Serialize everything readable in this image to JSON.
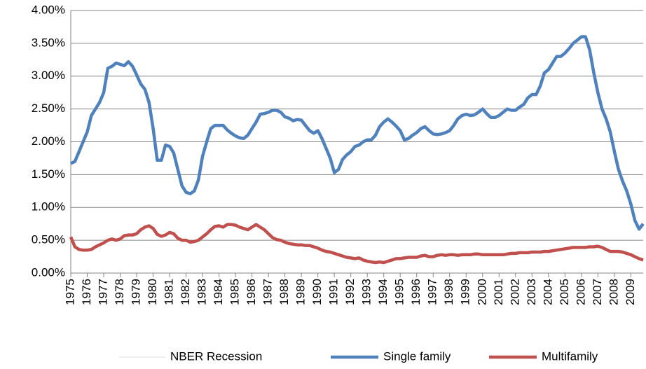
{
  "chart_data": {
    "type": "line",
    "categories": [
      "1975",
      null,
      null,
      null,
      "1976",
      null,
      null,
      null,
      "1977",
      null,
      null,
      null,
      "1978",
      null,
      null,
      null,
      "1979",
      null,
      null,
      null,
      "1980",
      null,
      null,
      null,
      "1981",
      null,
      null,
      null,
      "1982",
      null,
      null,
      null,
      "1983",
      null,
      null,
      null,
      "1984",
      null,
      null,
      null,
      "1985",
      null,
      null,
      null,
      "1986",
      null,
      null,
      null,
      "1987",
      null,
      null,
      null,
      "1988",
      null,
      null,
      null,
      "1989",
      null,
      null,
      null,
      "1990",
      null,
      null,
      null,
      "1991",
      null,
      null,
      null,
      "1992",
      null,
      null,
      null,
      "1993",
      null,
      null,
      null,
      "1994",
      null,
      null,
      null,
      "1995",
      null,
      null,
      null,
      "1996",
      null,
      null,
      null,
      "1997",
      null,
      null,
      null,
      "1998",
      null,
      null,
      null,
      "1999",
      null,
      null,
      null,
      "2000",
      null,
      null,
      null,
      "2001",
      null,
      null,
      null,
      "2002",
      null,
      null,
      null,
      "2003",
      null,
      null,
      null,
      "2004",
      null,
      null,
      null,
      "2005",
      null,
      null,
      null,
      "2006",
      null,
      null,
      null,
      "2007",
      null,
      null,
      null,
      "2008",
      null,
      null,
      null,
      "2009",
      null,
      null,
      null
    ],
    "recession": {
      "name": "NBER Recession",
      "color": "#eeeeee"
    },
    "series": [
      {
        "name": "Single family",
        "color": "#4f81bd",
        "values": [
          1.67,
          1.7,
          1.85,
          2.0,
          2.15,
          2.4,
          2.5,
          2.6,
          2.75,
          3.12,
          3.15,
          3.2,
          3.18,
          3.16,
          3.22,
          3.15,
          3.02,
          2.88,
          2.8,
          2.6,
          2.2,
          1.72,
          1.72,
          1.95,
          1.93,
          1.83,
          1.58,
          1.33,
          1.23,
          1.21,
          1.25,
          1.42,
          1.78,
          2.0,
          2.2,
          2.25,
          2.25,
          2.25,
          2.18,
          2.13,
          2.09,
          2.06,
          2.05,
          2.1,
          2.2,
          2.3,
          2.42,
          2.43,
          2.45,
          2.48,
          2.48,
          2.45,
          2.38,
          2.36,
          2.32,
          2.34,
          2.33,
          2.25,
          2.17,
          2.13,
          2.17,
          2.05,
          1.9,
          1.75,
          1.53,
          1.58,
          1.73,
          1.8,
          1.85,
          1.93,
          1.95,
          2.0,
          2.03,
          2.03,
          2.1,
          2.23,
          2.3,
          2.35,
          2.3,
          2.24,
          2.17,
          2.03,
          2.05,
          2.1,
          2.14,
          2.2,
          2.23,
          2.17,
          2.12,
          2.11,
          2.12,
          2.14,
          2.17,
          2.25,
          2.35,
          2.4,
          2.42,
          2.4,
          2.41,
          2.45,
          2.5,
          2.43,
          2.37,
          2.37,
          2.4,
          2.45,
          2.5,
          2.48,
          2.48,
          2.53,
          2.57,
          2.67,
          2.72,
          2.72,
          2.85,
          3.05,
          3.1,
          3.2,
          3.3,
          3.3,
          3.35,
          3.42,
          3.5,
          3.55,
          3.6,
          3.6,
          3.4,
          3.05,
          2.75,
          2.5,
          2.35,
          2.15,
          1.85,
          1.58,
          1.4,
          1.25,
          1.05,
          0.8,
          0.67,
          0.75
        ]
      },
      {
        "name": "Multifamily",
        "color": "#c0504d",
        "values": [
          0.55,
          0.4,
          0.36,
          0.35,
          0.35,
          0.36,
          0.4,
          0.43,
          0.46,
          0.5,
          0.52,
          0.5,
          0.52,
          0.57,
          0.58,
          0.58,
          0.6,
          0.66,
          0.7,
          0.72,
          0.68,
          0.59,
          0.56,
          0.58,
          0.62,
          0.6,
          0.53,
          0.5,
          0.5,
          0.47,
          0.48,
          0.5,
          0.55,
          0.6,
          0.66,
          0.71,
          0.72,
          0.7,
          0.74,
          0.74,
          0.73,
          0.7,
          0.68,
          0.66,
          0.7,
          0.74,
          0.7,
          0.66,
          0.6,
          0.54,
          0.51,
          0.5,
          0.47,
          0.45,
          0.44,
          0.43,
          0.43,
          0.42,
          0.42,
          0.4,
          0.38,
          0.35,
          0.33,
          0.32,
          0.3,
          0.28,
          0.26,
          0.24,
          0.23,
          0.22,
          0.23,
          0.2,
          0.18,
          0.17,
          0.16,
          0.17,
          0.16,
          0.18,
          0.2,
          0.22,
          0.22,
          0.23,
          0.24,
          0.24,
          0.24,
          0.26,
          0.27,
          0.25,
          0.25,
          0.27,
          0.28,
          0.27,
          0.28,
          0.28,
          0.27,
          0.28,
          0.28,
          0.28,
          0.29,
          0.29,
          0.28,
          0.28,
          0.28,
          0.28,
          0.28,
          0.28,
          0.29,
          0.3,
          0.3,
          0.31,
          0.31,
          0.31,
          0.32,
          0.32,
          0.32,
          0.33,
          0.33,
          0.34,
          0.35,
          0.36,
          0.37,
          0.38,
          0.39,
          0.39,
          0.39,
          0.39,
          0.4,
          0.4,
          0.41,
          0.39,
          0.36,
          0.33,
          0.33,
          0.33,
          0.32,
          0.3,
          0.28,
          0.25,
          0.22,
          0.2
        ]
      }
    ],
    "ylim": [
      0,
      4
    ],
    "yticks": [
      {
        "value": 0,
        "label": "0.00%"
      },
      {
        "value": 0.5,
        "label": "0.50%"
      },
      {
        "value": 1,
        "label": "1.00%"
      },
      {
        "value": 1.5,
        "label": "1.50%"
      },
      {
        "value": 2,
        "label": "2.00%"
      },
      {
        "value": 2.5,
        "label": "2.50%"
      },
      {
        "value": 3,
        "label": "3.00%"
      },
      {
        "value": 3.5,
        "label": "3.50%"
      },
      {
        "value": 4,
        "label": "4.00%"
      }
    ],
    "grid": true
  }
}
